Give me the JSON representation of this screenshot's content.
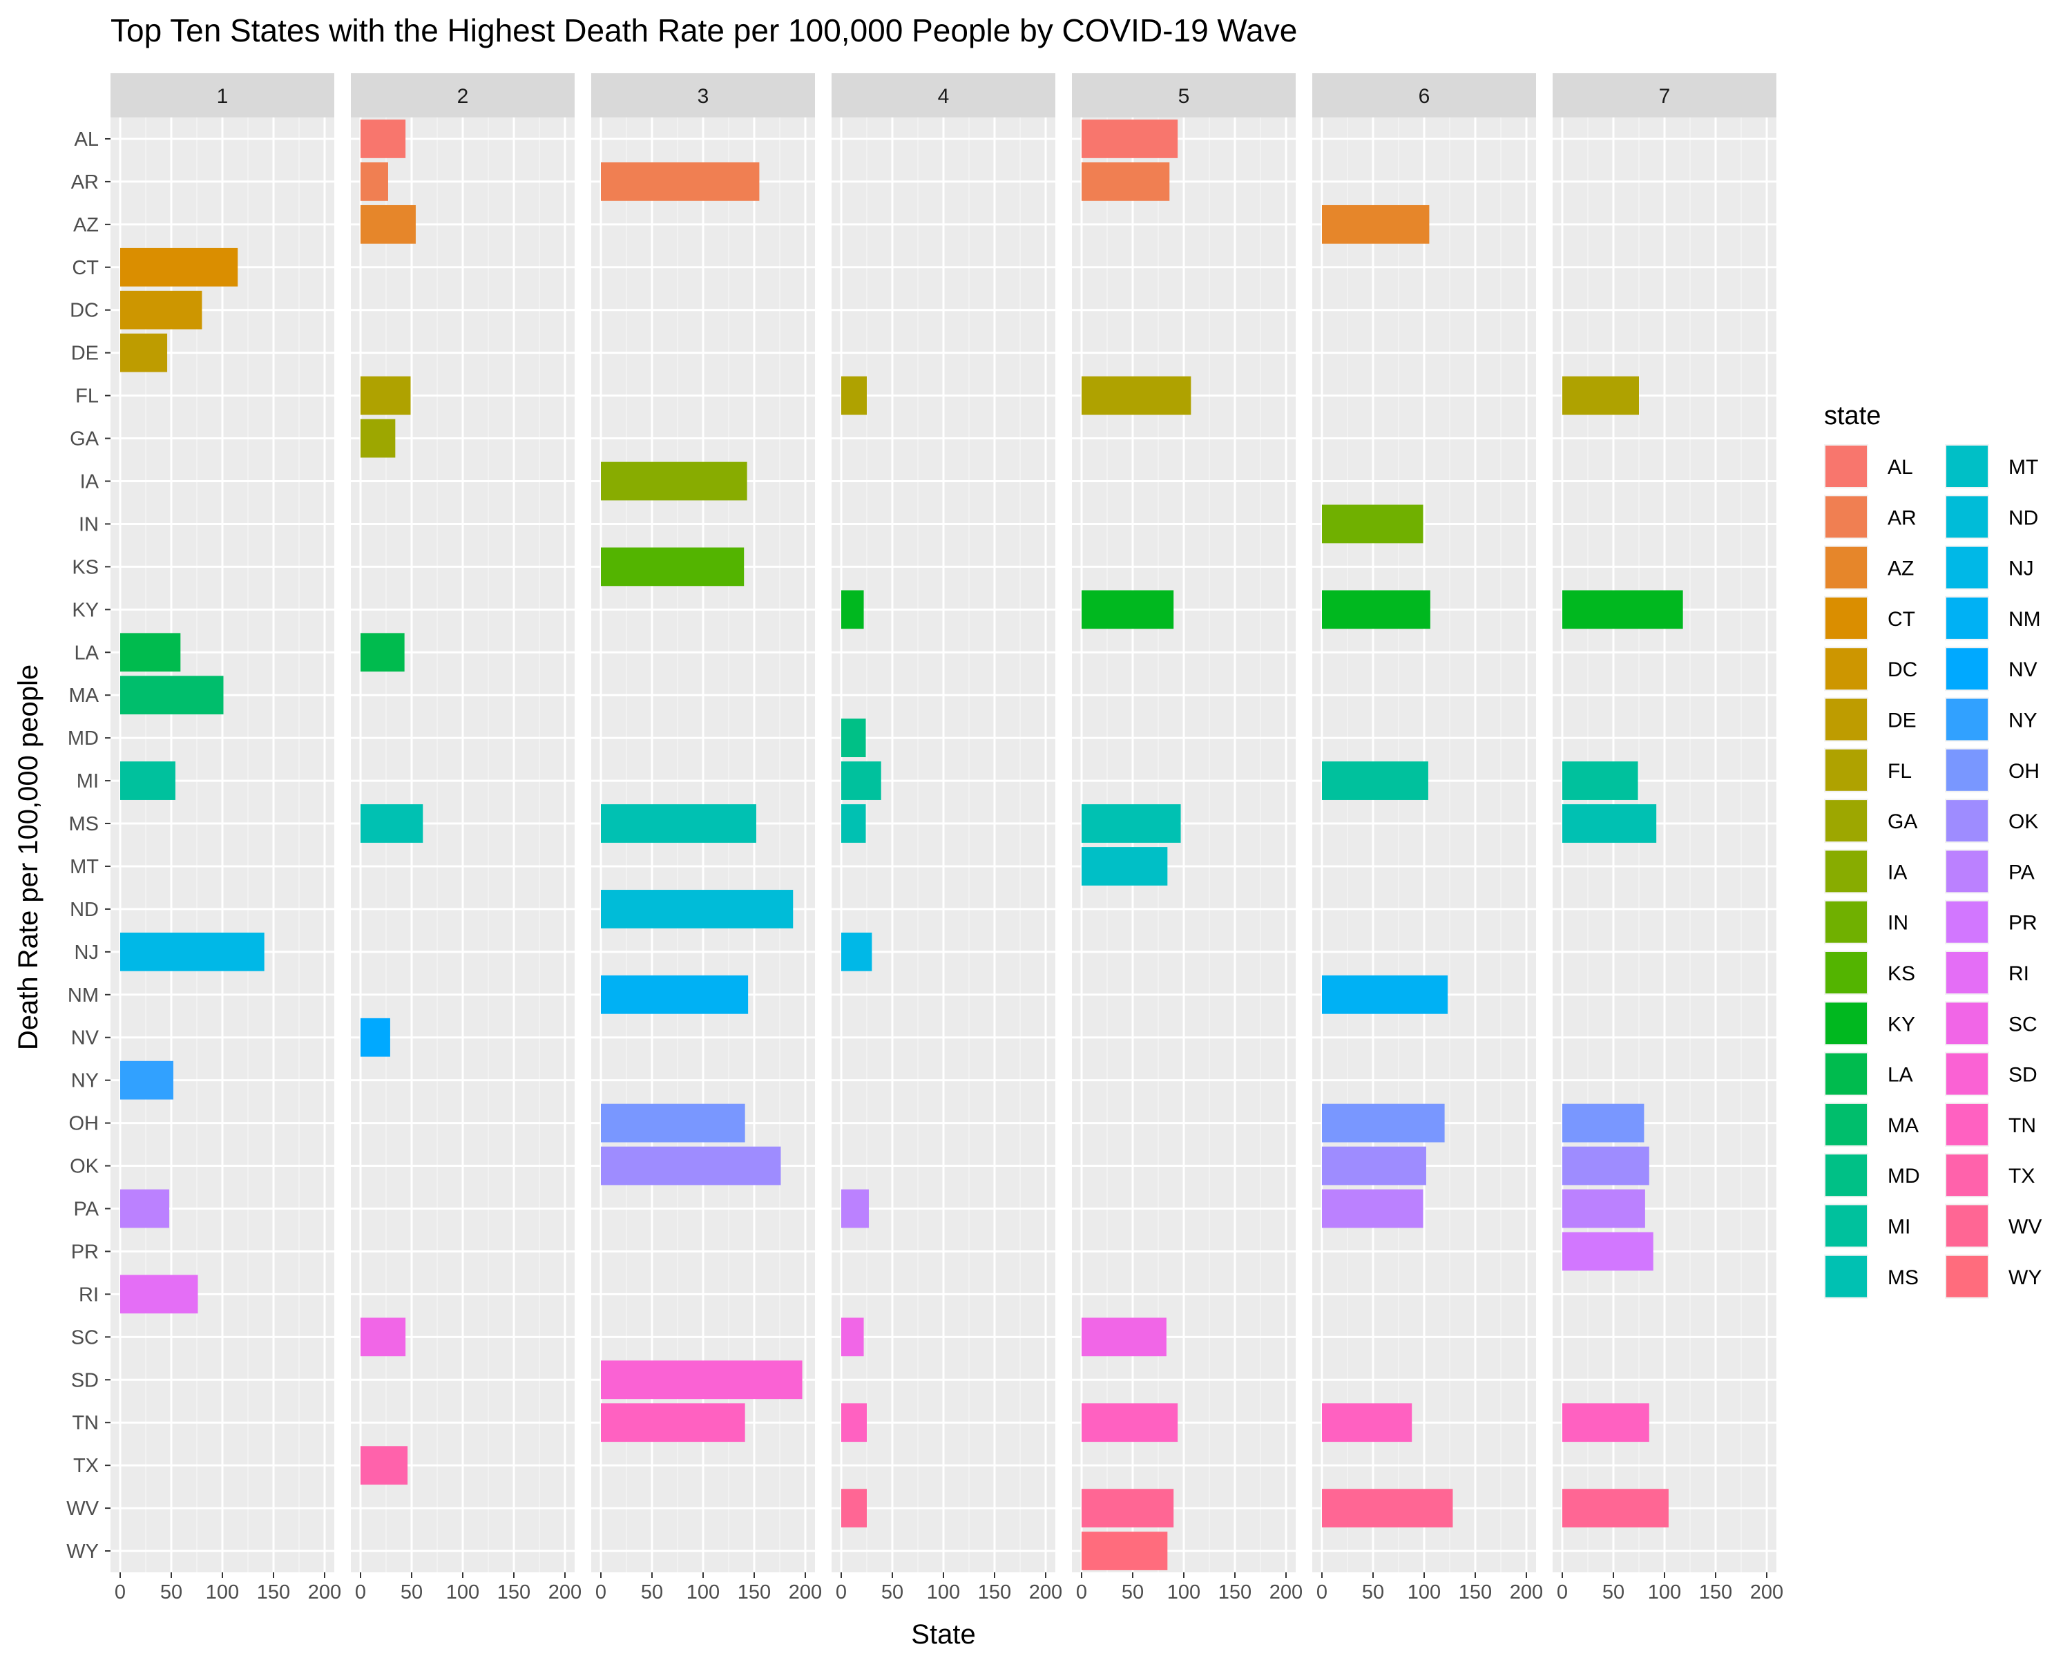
{
  "chart_data": {
    "type": "bar",
    "orientation": "horizontal",
    "faceted_by": "wave",
    "title": "Top Ten States with the Highest Death Rate per 100,000 People by COVID-19 Wave",
    "xlabel": "State",
    "ylabel": "Death Rate per 100,000 people",
    "xlim": [
      0,
      200
    ],
    "x_ticks": [
      0,
      50,
      100,
      150,
      200
    ],
    "grid": true,
    "legend_title": "state",
    "legend_position": "right",
    "categories": [
      "AL",
      "AR",
      "AZ",
      "CT",
      "DC",
      "DE",
      "FL",
      "GA",
      "IA",
      "IN",
      "KS",
      "KY",
      "LA",
      "MA",
      "MD",
      "MI",
      "MS",
      "MT",
      "ND",
      "NJ",
      "NM",
      "NV",
      "NY",
      "OH",
      "OK",
      "PA",
      "PR",
      "RI",
      "SC",
      "SD",
      "TN",
      "TX",
      "WV",
      "WY"
    ],
    "colors": [
      "#F8766D",
      "#F07F52",
      "#E6862A",
      "#DA8E00",
      "#CD9600",
      "#BE9C00",
      "#AFA200",
      "#9DA700",
      "#88AC00",
      "#70B000",
      "#53B400",
      "#00B81F",
      "#00BB4E",
      "#00BE6C",
      "#00C086",
      "#00C19D",
      "#00C1B2",
      "#00BFC6",
      "#00BCD8",
      "#00B8E7",
      "#00B1F4",
      "#00A9FF",
      "#31A1FF",
      "#7997FF",
      "#9E8CFF",
      "#BB81FF",
      "#D277FF",
      "#E46EF6",
      "#F166E7",
      "#FA62D4",
      "#FF61C1",
      "#FF62AB",
      "#FF6694",
      "#FF6C7D"
    ],
    "facets": [
      {
        "wave": "1",
        "bars": [
          {
            "state": "CT",
            "value": 115
          },
          {
            "state": "DC",
            "value": 80
          },
          {
            "state": "DE",
            "value": 46
          },
          {
            "state": "LA",
            "value": 59
          },
          {
            "state": "MA",
            "value": 101
          },
          {
            "state": "MI",
            "value": 54
          },
          {
            "state": "NJ",
            "value": 141
          },
          {
            "state": "NY",
            "value": 52
          },
          {
            "state": "PA",
            "value": 48
          },
          {
            "state": "RI",
            "value": 76
          }
        ]
      },
      {
        "wave": "2",
        "bars": [
          {
            "state": "AL",
            "value": 44
          },
          {
            "state": "AR",
            "value": 27
          },
          {
            "state": "AZ",
            "value": 54
          },
          {
            "state": "FL",
            "value": 49
          },
          {
            "state": "GA",
            "value": 34
          },
          {
            "state": "LA",
            "value": 43
          },
          {
            "state": "MS",
            "value": 61
          },
          {
            "state": "NV",
            "value": 29
          },
          {
            "state": "SC",
            "value": 44
          },
          {
            "state": "TX",
            "value": 46
          }
        ]
      },
      {
        "wave": "3",
        "bars": [
          {
            "state": "AR",
            "value": 155
          },
          {
            "state": "IA",
            "value": 143
          },
          {
            "state": "KS",
            "value": 140
          },
          {
            "state": "MS",
            "value": 152
          },
          {
            "state": "ND",
            "value": 188
          },
          {
            "state": "NM",
            "value": 144
          },
          {
            "state": "OH",
            "value": 141
          },
          {
            "state": "OK",
            "value": 176
          },
          {
            "state": "SD",
            "value": 197
          },
          {
            "state": "TN",
            "value": 141
          }
        ]
      },
      {
        "wave": "4",
        "bars": [
          {
            "state": "FL",
            "value": 25
          },
          {
            "state": "KY",
            "value": 22
          },
          {
            "state": "MD",
            "value": 24
          },
          {
            "state": "MI",
            "value": 39
          },
          {
            "state": "MS",
            "value": 24
          },
          {
            "state": "NJ",
            "value": 30
          },
          {
            "state": "PA",
            "value": 27
          },
          {
            "state": "SC",
            "value": 22
          },
          {
            "state": "TN",
            "value": 25
          },
          {
            "state": "WV",
            "value": 25
          }
        ]
      },
      {
        "wave": "5",
        "bars": [
          {
            "state": "AL",
            "value": 94
          },
          {
            "state": "AR",
            "value": 86
          },
          {
            "state": "FL",
            "value": 107
          },
          {
            "state": "KY",
            "value": 90
          },
          {
            "state": "MS",
            "value": 97
          },
          {
            "state": "MT",
            "value": 84
          },
          {
            "state": "SC",
            "value": 83
          },
          {
            "state": "TN",
            "value": 94
          },
          {
            "state": "WV",
            "value": 90
          },
          {
            "state": "WY",
            "value": 84
          }
        ]
      },
      {
        "wave": "6",
        "bars": [
          {
            "state": "AZ",
            "value": 105
          },
          {
            "state": "IN",
            "value": 99
          },
          {
            "state": "KY",
            "value": 106
          },
          {
            "state": "MI",
            "value": 104
          },
          {
            "state": "NM",
            "value": 123
          },
          {
            "state": "OH",
            "value": 120
          },
          {
            "state": "OK",
            "value": 102
          },
          {
            "state": "PA",
            "value": 99
          },
          {
            "state": "TN",
            "value": 88
          },
          {
            "state": "WV",
            "value": 128
          }
        ]
      },
      {
        "wave": "7",
        "bars": [
          {
            "state": "FL",
            "value": 75
          },
          {
            "state": "KY",
            "value": 118
          },
          {
            "state": "MI",
            "value": 74
          },
          {
            "state": "MS",
            "value": 92
          },
          {
            "state": "OH",
            "value": 80
          },
          {
            "state": "OK",
            "value": 85
          },
          {
            "state": "PA",
            "value": 81
          },
          {
            "state": "PR",
            "value": 89
          },
          {
            "state": "TN",
            "value": 85
          },
          {
            "state": "WV",
            "value": 104
          }
        ]
      }
    ]
  }
}
